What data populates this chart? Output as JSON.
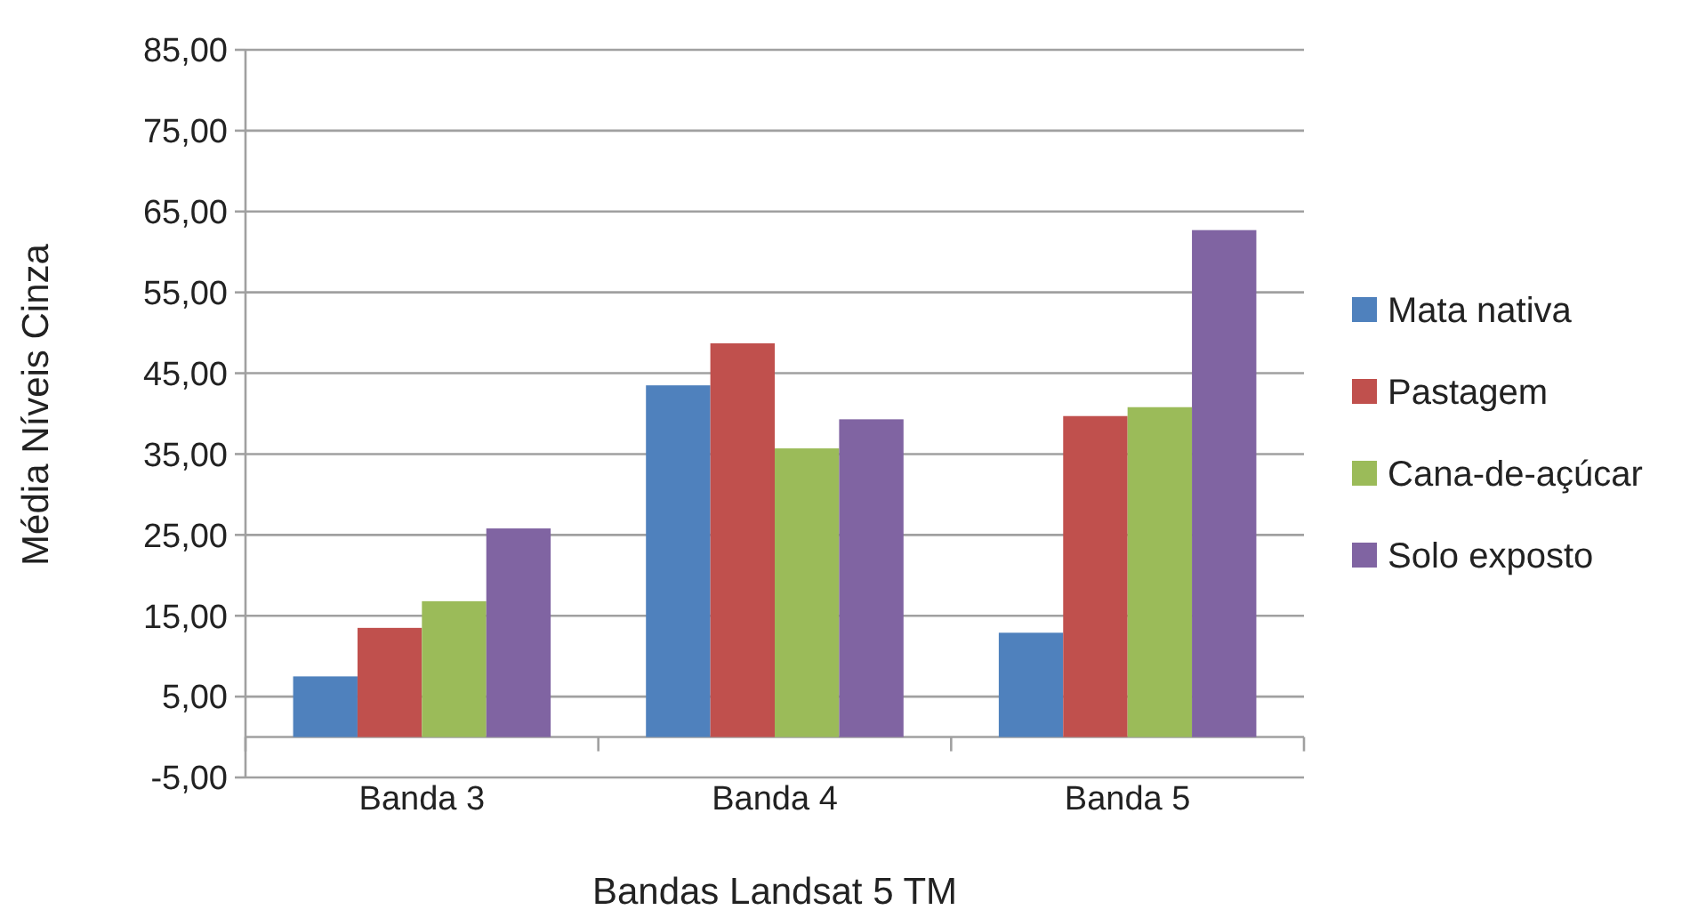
{
  "chart_data": {
    "type": "bar",
    "xlabel": "Bandas Landsat  5 TM",
    "ylabel": "Média Níveis Cinza",
    "categories": [
      "Banda 3",
      "Banda 4",
      "Banda 5"
    ],
    "series": [
      {
        "name": "Mata nativa",
        "color": "#4f81bd",
        "values": [
          7.5,
          43.5,
          12.9
        ]
      },
      {
        "name": "Pastagem",
        "color": "#c0504d",
        "values": [
          13.5,
          48.7,
          39.7
        ]
      },
      {
        "name": "Cana-de-açúcar",
        "color": "#9bbb59",
        "values": [
          16.8,
          35.7,
          40.8
        ]
      },
      {
        "name": "Solo exposto",
        "color": "#8064a2",
        "values": [
          25.8,
          39.3,
          62.7
        ]
      }
    ],
    "ylim": [
      -5,
      85
    ],
    "yticks": [
      {
        "value": -5,
        "label": "-5,00"
      },
      {
        "value": 5,
        "label": "5,00"
      },
      {
        "value": 15,
        "label": "15,00"
      },
      {
        "value": 25,
        "label": "25,00"
      },
      {
        "value": 35,
        "label": "35,00"
      },
      {
        "value": 45,
        "label": "45,00"
      },
      {
        "value": 55,
        "label": "55,00"
      },
      {
        "value": 65,
        "label": "65,00"
      },
      {
        "value": 75,
        "label": "75,00"
      },
      {
        "value": 85,
        "label": "85,00"
      }
    ],
    "grid": "y",
    "legend": "right"
  }
}
